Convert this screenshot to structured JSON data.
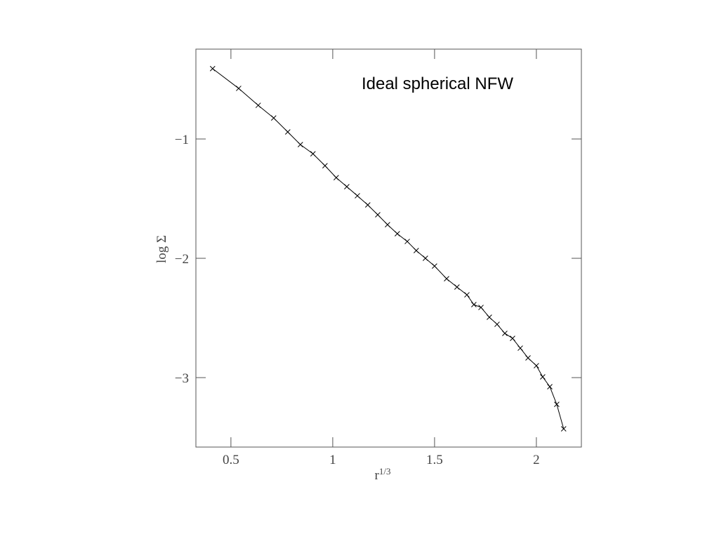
{
  "chart_data": {
    "type": "line",
    "annotation": "Ideal spherical NFW",
    "xlabel": {
      "base": "r",
      "sup": "1/3"
    },
    "ylabel": "log Σ",
    "x": [
      0.41,
      0.538,
      0.634,
      0.71,
      0.779,
      0.841,
      0.903,
      0.962,
      1.017,
      1.069,
      1.121,
      1.172,
      1.221,
      1.269,
      1.317,
      1.366,
      1.41,
      1.455,
      1.5,
      1.559,
      1.61,
      1.659,
      1.693,
      1.728,
      1.769,
      1.807,
      1.845,
      1.883,
      1.921,
      1.959,
      2.0,
      2.031,
      2.066,
      2.1,
      2.134
    ],
    "values": [
      -0.41,
      -0.576,
      -0.718,
      -0.824,
      -0.941,
      -1.047,
      -1.124,
      -1.224,
      -1.324,
      -1.4,
      -1.476,
      -1.553,
      -1.635,
      -1.718,
      -1.794,
      -1.859,
      -1.935,
      -2.0,
      -2.065,
      -2.171,
      -2.241,
      -2.306,
      -2.388,
      -2.412,
      -2.494,
      -2.553,
      -2.629,
      -2.671,
      -2.753,
      -2.835,
      -2.9,
      -2.994,
      -3.076,
      -3.224,
      -3.429
    ],
    "color": "#000000",
    "marker": "x",
    "xlim": [
      0.328,
      2.221
    ],
    "ylim": [
      -3.582,
      -0.247
    ],
    "xticks": [
      0.5,
      1,
      1.5,
      2
    ],
    "yticks": [
      {
        "value": -1,
        "label": "−1"
      },
      {
        "value": -2,
        "label": "−2"
      },
      {
        "value": -3,
        "label": "−3"
      }
    ],
    "grid": false
  }
}
